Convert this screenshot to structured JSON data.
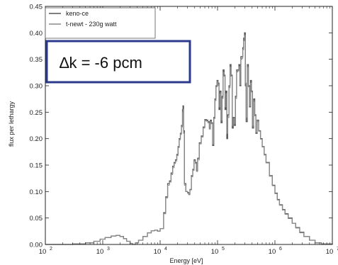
{
  "chart_data": {
    "type": "line",
    "title": "",
    "xlabel": "Energy [eV]",
    "ylabel": "flux per lethargy",
    "xscale": "log",
    "xlim": [
      100,
      10000000
    ],
    "ylim": [
      0,
      0.45
    ],
    "x_tick_labels": [
      {
        "base": "10",
        "exp": "2",
        "value": 100
      },
      {
        "base": "10",
        "exp": "3",
        "value": 1000
      },
      {
        "base": "10",
        "exp": "4",
        "value": 10000
      },
      {
        "base": "10",
        "exp": "5",
        "value": 100000
      },
      {
        "base": "10",
        "exp": "6",
        "value": 1000000
      },
      {
        "base": "10",
        "exp": "7",
        "value": 10000000
      }
    ],
    "y_tick_labels": [
      "0.00",
      "0.05",
      "0.10",
      "0.15",
      "0.20",
      "0.25",
      "0.30",
      "0.35",
      "0.40",
      "0.45"
    ],
    "y_ticks": [
      0,
      0.05,
      0.1,
      0.15,
      0.2,
      0.25,
      0.3,
      0.35,
      0.4,
      0.45
    ],
    "grid": false,
    "legend_position": "top-left",
    "series": [
      {
        "name": "keno-ce",
        "color": "#555555",
        "points": [
          [
            100,
            0
          ],
          [
            300,
            0.001
          ],
          [
            500,
            0.003
          ],
          [
            700,
            0.006
          ],
          [
            900,
            0.01
          ],
          [
            1100,
            0.013
          ],
          [
            1400,
            0.016
          ],
          [
            1700,
            0.017
          ],
          [
            2000,
            0.015
          ],
          [
            2300,
            0.011
          ],
          [
            2600,
            0.006
          ],
          [
            3000,
            0.002
          ],
          [
            3300,
            0.0
          ],
          [
            3700,
            0.003
          ],
          [
            4200,
            0.008
          ],
          [
            5000,
            0.015
          ],
          [
            6000,
            0.022
          ],
          [
            7000,
            0.026
          ],
          [
            8000,
            0.027
          ],
          [
            9000,
            0.025
          ],
          [
            10000,
            0.03
          ],
          [
            11500,
            0.06
          ],
          [
            12500,
            0.09
          ],
          [
            13500,
            0.115
          ],
          [
            14500,
            0.12
          ],
          [
            15500,
            0.135
          ],
          [
            16500,
            0.148
          ],
          [
            17500,
            0.155
          ],
          [
            18500,
            0.16
          ],
          [
            19500,
            0.17
          ],
          [
            20500,
            0.185
          ],
          [
            21500,
            0.2
          ],
          [
            22500,
            0.21
          ],
          [
            23500,
            0.225
          ],
          [
            24500,
            0.255
          ],
          [
            25000,
            0.262
          ],
          [
            25600,
            0.215
          ],
          [
            26500,
            0.115
          ],
          [
            28000,
            0.1
          ],
          [
            30000,
            0.098
          ],
          [
            31500,
            0.095
          ],
          [
            33000,
            0.104
          ],
          [
            35000,
            0.13
          ],
          [
            37000,
            0.142
          ],
          [
            39000,
            0.16
          ],
          [
            41000,
            0.155
          ],
          [
            43000,
            0.14
          ],
          [
            45000,
            0.163
          ],
          [
            48000,
            0.192
          ],
          [
            52000,
            0.205
          ],
          [
            56000,
            0.222
          ],
          [
            60000,
            0.236
          ],
          [
            64000,
            0.235
          ],
          [
            68000,
            0.232
          ],
          [
            72000,
            0.22
          ],
          [
            75000,
            0.235
          ],
          [
            78000,
            0.23
          ],
          [
            82000,
            0.187
          ],
          [
            86000,
            0.24
          ],
          [
            90000,
            0.275
          ],
          [
            94000,
            0.3
          ],
          [
            98000,
            0.31
          ],
          [
            102000,
            0.305
          ],
          [
            106000,
            0.255
          ],
          [
            110000,
            0.29
          ],
          [
            115000,
            0.23
          ],
          [
            120000,
            0.28
          ],
          [
            125000,
            0.33
          ],
          [
            130000,
            0.32
          ],
          [
            135000,
            0.255
          ],
          [
            140000,
            0.29
          ],
          [
            145000,
            0.2
          ],
          [
            150000,
            0.245
          ],
          [
            158000,
            0.3
          ],
          [
            165000,
            0.34
          ],
          [
            172000,
            0.32
          ],
          [
            180000,
            0.22
          ],
          [
            188000,
            0.24
          ],
          [
            196000,
            0.225
          ],
          [
            205000,
            0.28
          ],
          [
            215000,
            0.33
          ],
          [
            225000,
            0.33
          ],
          [
            235000,
            0.34
          ],
          [
            245000,
            0.3
          ],
          [
            255000,
            0.355
          ],
          [
            265000,
            0.355
          ],
          [
            275000,
            0.372
          ],
          [
            285000,
            0.39
          ],
          [
            295000,
            0.4
          ],
          [
            305000,
            0.3
          ],
          [
            315000,
            0.232
          ],
          [
            330000,
            0.34
          ],
          [
            345000,
            0.3
          ],
          [
            360000,
            0.26
          ],
          [
            375000,
            0.31
          ],
          [
            390000,
            0.29
          ],
          [
            405000,
            0.22
          ],
          [
            425000,
            0.275
          ],
          [
            445000,
            0.245
          ],
          [
            465000,
            0.21
          ],
          [
            490000,
            0.235
          ],
          [
            520000,
            0.215
          ],
          [
            560000,
            0.2
          ],
          [
            600000,
            0.185
          ],
          [
            650000,
            0.17
          ],
          [
            700000,
            0.155
          ],
          [
            800000,
            0.13
          ],
          [
            900000,
            0.112
          ],
          [
            1000000,
            0.097
          ],
          [
            1100000,
            0.085
          ],
          [
            1200000,
            0.075
          ],
          [
            1350000,
            0.066
          ],
          [
            1500000,
            0.058
          ],
          [
            1700000,
            0.05
          ],
          [
            2000000,
            0.04
          ],
          [
            2300000,
            0.032
          ],
          [
            2700000,
            0.023
          ],
          [
            3200000,
            0.015
          ],
          [
            4000000,
            0.008
          ],
          [
            5000000,
            0.003
          ],
          [
            6500000,
            0.001
          ],
          [
            10000000,
            0.0
          ]
        ]
      },
      {
        "name": "t-newt - 230g watt",
        "color": "#8a8a8a",
        "points": [
          [
            100,
            0
          ],
          [
            300,
            0.001
          ],
          [
            500,
            0.003
          ],
          [
            700,
            0.006
          ],
          [
            900,
            0.01
          ],
          [
            1100,
            0.013
          ],
          [
            1400,
            0.016
          ],
          [
            1700,
            0.017
          ],
          [
            2000,
            0.015
          ],
          [
            2300,
            0.011
          ],
          [
            2600,
            0.006
          ],
          [
            3000,
            0.002
          ],
          [
            3300,
            0.0
          ],
          [
            3700,
            0.003
          ],
          [
            4200,
            0.008
          ],
          [
            5000,
            0.015
          ],
          [
            6000,
            0.022
          ],
          [
            7000,
            0.026
          ],
          [
            8000,
            0.027
          ],
          [
            9000,
            0.025
          ],
          [
            10000,
            0.03
          ],
          [
            11500,
            0.058
          ],
          [
            12500,
            0.088
          ],
          [
            13500,
            0.112
          ],
          [
            14500,
            0.118
          ],
          [
            15500,
            0.132
          ],
          [
            16500,
            0.145
          ],
          [
            17500,
            0.153
          ],
          [
            18500,
            0.158
          ],
          [
            19500,
            0.168
          ],
          [
            20500,
            0.183
          ],
          [
            21500,
            0.198
          ],
          [
            22500,
            0.208
          ],
          [
            23500,
            0.222
          ],
          [
            24500,
            0.25
          ],
          [
            25000,
            0.255
          ],
          [
            25600,
            0.21
          ],
          [
            26500,
            0.112
          ],
          [
            28000,
            0.1
          ],
          [
            30000,
            0.097
          ],
          [
            31500,
            0.094
          ],
          [
            33000,
            0.103
          ],
          [
            35000,
            0.128
          ],
          [
            37000,
            0.14
          ],
          [
            39000,
            0.158
          ],
          [
            41000,
            0.153
          ],
          [
            43000,
            0.138
          ],
          [
            45000,
            0.16
          ],
          [
            48000,
            0.19
          ],
          [
            52000,
            0.203
          ],
          [
            56000,
            0.22
          ],
          [
            60000,
            0.234
          ],
          [
            64000,
            0.233
          ],
          [
            68000,
            0.23
          ],
          [
            72000,
            0.218
          ],
          [
            75000,
            0.232
          ],
          [
            78000,
            0.228
          ],
          [
            82000,
            0.19
          ],
          [
            86000,
            0.238
          ],
          [
            90000,
            0.272
          ],
          [
            94000,
            0.298
          ],
          [
            98000,
            0.308
          ],
          [
            102000,
            0.3
          ],
          [
            106000,
            0.26
          ],
          [
            110000,
            0.285
          ],
          [
            115000,
            0.235
          ],
          [
            120000,
            0.276
          ],
          [
            125000,
            0.325
          ],
          [
            130000,
            0.318
          ],
          [
            135000,
            0.26
          ],
          [
            140000,
            0.285
          ],
          [
            145000,
            0.21
          ],
          [
            150000,
            0.24
          ],
          [
            158000,
            0.296
          ],
          [
            165000,
            0.335
          ],
          [
            172000,
            0.318
          ],
          [
            180000,
            0.225
          ],
          [
            188000,
            0.238
          ],
          [
            196000,
            0.228
          ],
          [
            205000,
            0.276
          ],
          [
            215000,
            0.326
          ],
          [
            225000,
            0.328
          ],
          [
            235000,
            0.336
          ],
          [
            245000,
            0.302
          ],
          [
            255000,
            0.35
          ],
          [
            265000,
            0.352
          ],
          [
            275000,
            0.368
          ],
          [
            285000,
            0.385
          ],
          [
            295000,
            0.395
          ],
          [
            305000,
            0.305
          ],
          [
            315000,
            0.24
          ],
          [
            330000,
            0.335
          ],
          [
            345000,
            0.298
          ],
          [
            360000,
            0.262
          ],
          [
            375000,
            0.305
          ],
          [
            390000,
            0.288
          ],
          [
            405000,
            0.225
          ],
          [
            425000,
            0.27
          ],
          [
            445000,
            0.243
          ],
          [
            465000,
            0.212
          ],
          [
            490000,
            0.232
          ],
          [
            520000,
            0.214
          ],
          [
            560000,
            0.199
          ],
          [
            600000,
            0.184
          ],
          [
            650000,
            0.169
          ],
          [
            700000,
            0.154
          ],
          [
            800000,
            0.129
          ],
          [
            900000,
            0.111
          ],
          [
            1000000,
            0.096
          ],
          [
            1100000,
            0.084
          ],
          [
            1200000,
            0.074
          ],
          [
            1350000,
            0.065
          ],
          [
            1500000,
            0.057
          ],
          [
            1700000,
            0.049
          ],
          [
            2000000,
            0.04
          ],
          [
            2300000,
            0.031
          ],
          [
            2700000,
            0.022
          ],
          [
            3200000,
            0.015
          ],
          [
            4000000,
            0.008
          ],
          [
            5000000,
            0.003
          ],
          [
            6500000,
            0.001
          ],
          [
            10000000,
            0.0
          ]
        ]
      }
    ],
    "annotation": {
      "text": "∆k = -6 pcm",
      "border_color": "#2b3a8c"
    },
    "axis_color": "#222222"
  }
}
